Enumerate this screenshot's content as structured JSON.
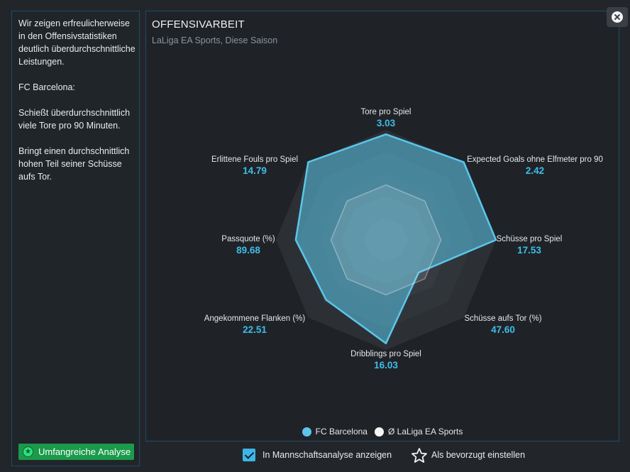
{
  "left_panel": {
    "text": "Wir zeigen erfreulicherweise in den Offensivstatistiken deutlich überdurchschnittliche Leistungen.\n\nFC Barcelona:\n\nSchießt überdurchschnittlich viele Tore pro 90 Minuten.\n\nBringt einen durchschnittlich hohen Teil seiner Schüsse aufs Tor.",
    "analysis_button_label": "Umfangreiche Analyse"
  },
  "panel": {
    "title": "OFFENSIVARBEIT",
    "subtitle": "LaLiga EA Sports, Diese Saison"
  },
  "chart_data": {
    "type": "radar",
    "title": "OFFENSIVARBEIT",
    "subtitle": "LaLiga EA Sports, Diese Saison",
    "axes": [
      {
        "label": "Tore pro Spiel",
        "value": "3.03"
      },
      {
        "label": "Expected Goals ohne Elfmeter pro 90",
        "value": "2.42"
      },
      {
        "label": "Schüsse pro Spiel",
        "value": "17.53"
      },
      {
        "label": "Schüsse aufs Tor (%)",
        "value": "47.60"
      },
      {
        "label": "Dribblings pro Spiel",
        "value": "16.03"
      },
      {
        "label": "Angekommene Flanken (%)",
        "value": "22.51"
      },
      {
        "label": "Passquote (%)",
        "value": "89.68"
      },
      {
        "label": "Erlittene Fouls pro Spiel",
        "value": "14.79"
      }
    ],
    "series": [
      {
        "name": "FC Barcelona",
        "color": "#5bc6ea",
        "relative": [
          0.96,
          1.0,
          1.0,
          0.42,
          0.94,
          0.77,
          0.82,
          1.0
        ]
      },
      {
        "name": "Ø LaLiga EA Sports",
        "color": "#f5f5f5",
        "relative": [
          0.5,
          0.5,
          0.5,
          0.5,
          0.5,
          0.5,
          0.5,
          0.5
        ]
      }
    ],
    "range": [
      0,
      1
    ],
    "legend_position": "bottom"
  },
  "legend": {
    "team": "FC Barcelona",
    "league": "Ø LaLiga EA Sports"
  },
  "footer": {
    "checkbox_label": "In Mannschaftsanalyse anzeigen",
    "checkbox_checked": true,
    "favorite_label": "Als bevorzugt einstellen"
  }
}
